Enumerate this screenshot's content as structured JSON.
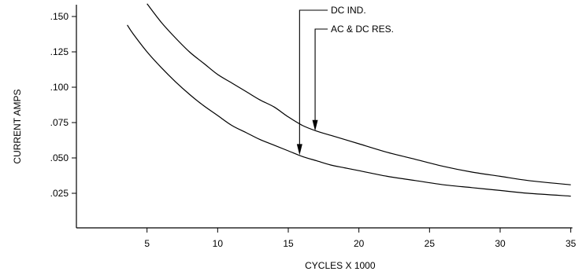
{
  "chart_data": {
    "type": "line",
    "title": "",
    "xlabel": "CYCLES X 1000",
    "ylabel": "CURRENT AMPS",
    "xlim": [
      0,
      35
    ],
    "ylim": [
      0,
      0.155
    ],
    "x_ticks": [
      5,
      10,
      15,
      20,
      25,
      30,
      35
    ],
    "x_tick_labels": [
      "5",
      "10",
      "15",
      "20",
      "25",
      "30",
      "35"
    ],
    "y_ticks": [
      0.025,
      0.05,
      0.075,
      0.1,
      0.125,
      0.15
    ],
    "y_tick_labels": [
      ".025",
      ".050",
      ".075",
      ".100",
      ".125",
      ".150"
    ],
    "grid": false,
    "series": [
      {
        "name": "AC & DC RES.",
        "x": [
          5,
          6,
          7,
          8,
          9,
          10,
          11,
          12,
          13,
          14,
          15,
          16,
          17,
          18,
          19,
          20,
          22,
          24,
          26,
          28,
          30,
          32,
          35
        ],
        "y": [
          0.159,
          0.146,
          0.135,
          0.125,
          0.117,
          0.109,
          0.103,
          0.097,
          0.091,
          0.086,
          0.079,
          0.073,
          0.069,
          0.066,
          0.063,
          0.06,
          0.054,
          0.049,
          0.044,
          0.04,
          0.037,
          0.034,
          0.031
        ]
      },
      {
        "name": "DC IND.",
        "x": [
          3.6,
          4,
          5,
          6,
          7,
          8,
          9,
          10,
          11,
          12,
          13,
          14,
          15,
          16,
          17,
          18,
          19,
          20,
          22,
          24,
          26,
          28,
          30,
          32,
          35
        ],
        "y": [
          0.144,
          0.138,
          0.125,
          0.114,
          0.104,
          0.095,
          0.087,
          0.08,
          0.073,
          0.068,
          0.063,
          0.059,
          0.055,
          0.051,
          0.048,
          0.045,
          0.043,
          0.041,
          0.037,
          0.034,
          0.031,
          0.029,
          0.027,
          0.025,
          0.023
        ]
      }
    ],
    "annotations": [
      {
        "text": "DC IND.",
        "x": 15.8,
        "y": 0.052
      },
      {
        "text": "AC & DC RES.",
        "x": 16.9,
        "y": 0.069
      }
    ]
  }
}
